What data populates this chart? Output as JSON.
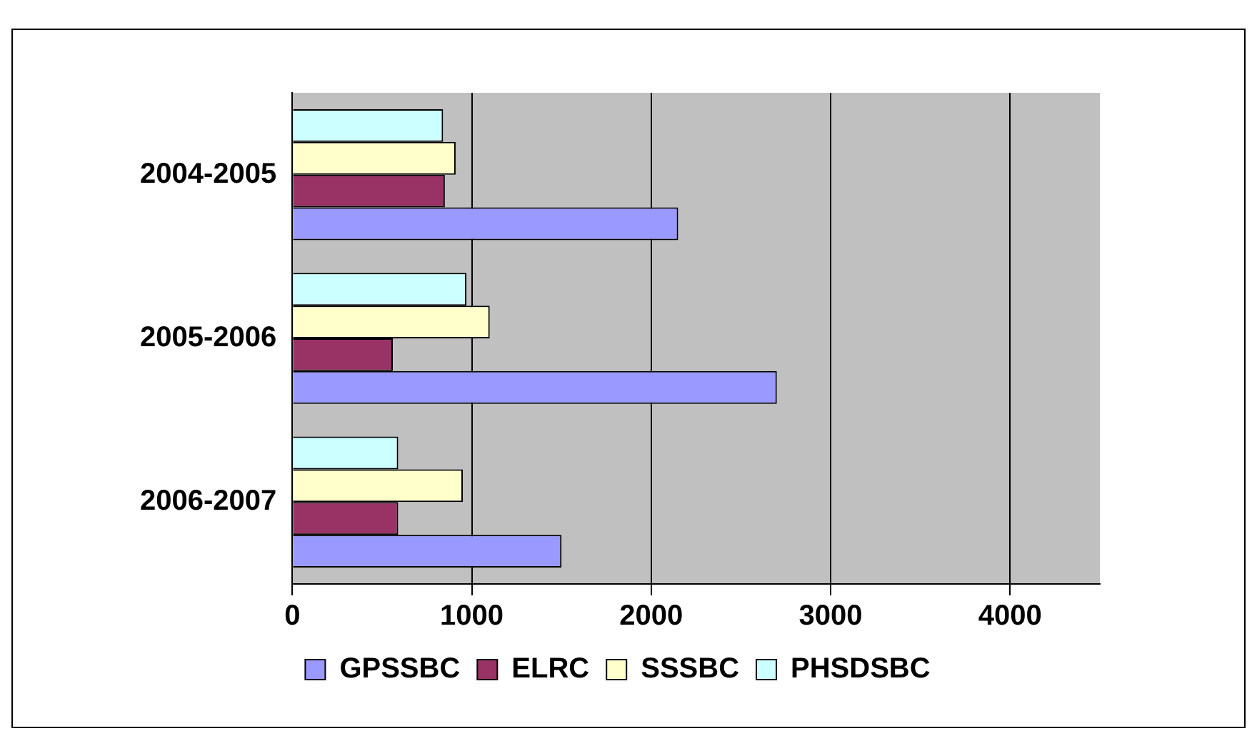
{
  "chart_data": {
    "type": "bar",
    "orientation": "horizontal",
    "categories": [
      "2004-2005",
      "2005-2006",
      "2006-2007"
    ],
    "series": [
      {
        "name": "GPSSBC",
        "color": "#9999ff",
        "values": [
          2150,
          2700,
          1500
        ]
      },
      {
        "name": "ELRC",
        "color": "#993366",
        "values": [
          850,
          560,
          590
        ]
      },
      {
        "name": "SSSBC",
        "color": "#ffffcc",
        "values": [
          910,
          1100,
          950
        ]
      },
      {
        "name": "PHSDSBC",
        "color": "#ccffff",
        "values": [
          840,
          970,
          590
        ]
      }
    ],
    "xlim": [
      0,
      4500
    ],
    "xticks": [
      0,
      1000,
      2000,
      3000,
      4000
    ],
    "grid": "x",
    "legend": "bottom"
  }
}
